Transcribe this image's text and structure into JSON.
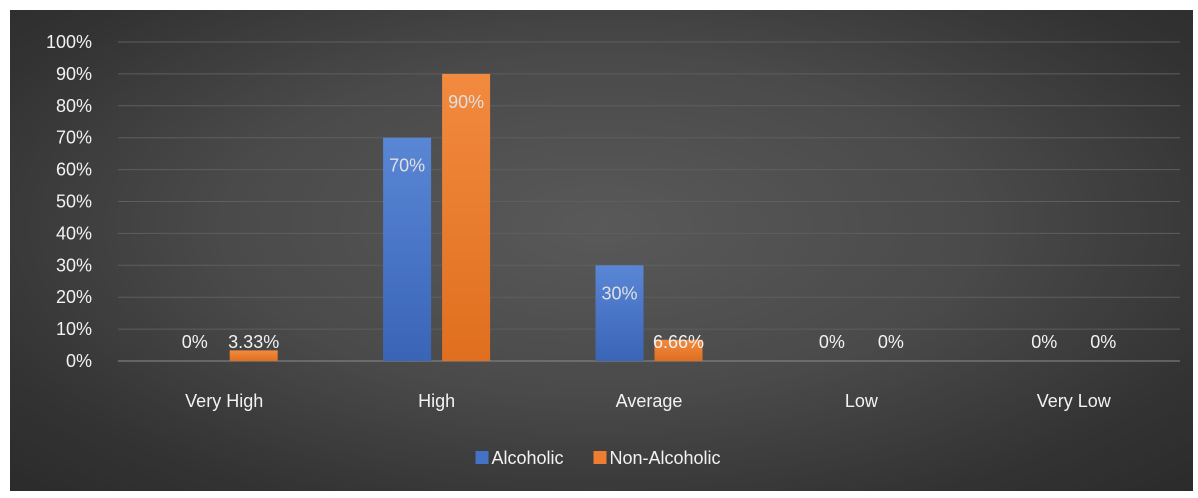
{
  "chart_data": {
    "type": "bar",
    "categories": [
      "Very High",
      "High",
      "Average",
      "Low",
      "Very Low"
    ],
    "series": [
      {
        "name": "Alcoholic",
        "values": [
          0,
          70,
          30,
          0,
          0
        ],
        "labels": [
          "0%",
          "70%",
          "30%",
          "0%",
          "0%"
        ],
        "color": "#4472c4"
      },
      {
        "name": "Non-Alcoholic",
        "values": [
          3.33,
          90,
          6.66,
          0,
          0
        ],
        "labels": [
          "3.33%",
          "90%",
          "6.66%",
          "0%",
          "0%"
        ],
        "color": "#ed7d31"
      }
    ],
    "yticks": [
      "0%",
      "10%",
      "20%",
      "30%",
      "40%",
      "50%",
      "60%",
      "70%",
      "80%",
      "90%",
      "100%"
    ],
    "ylim": [
      0,
      100
    ],
    "title": "",
    "xlabel": "",
    "ylabel": "",
    "grid": true,
    "legend_position": "bottom",
    "background": "#404040"
  }
}
